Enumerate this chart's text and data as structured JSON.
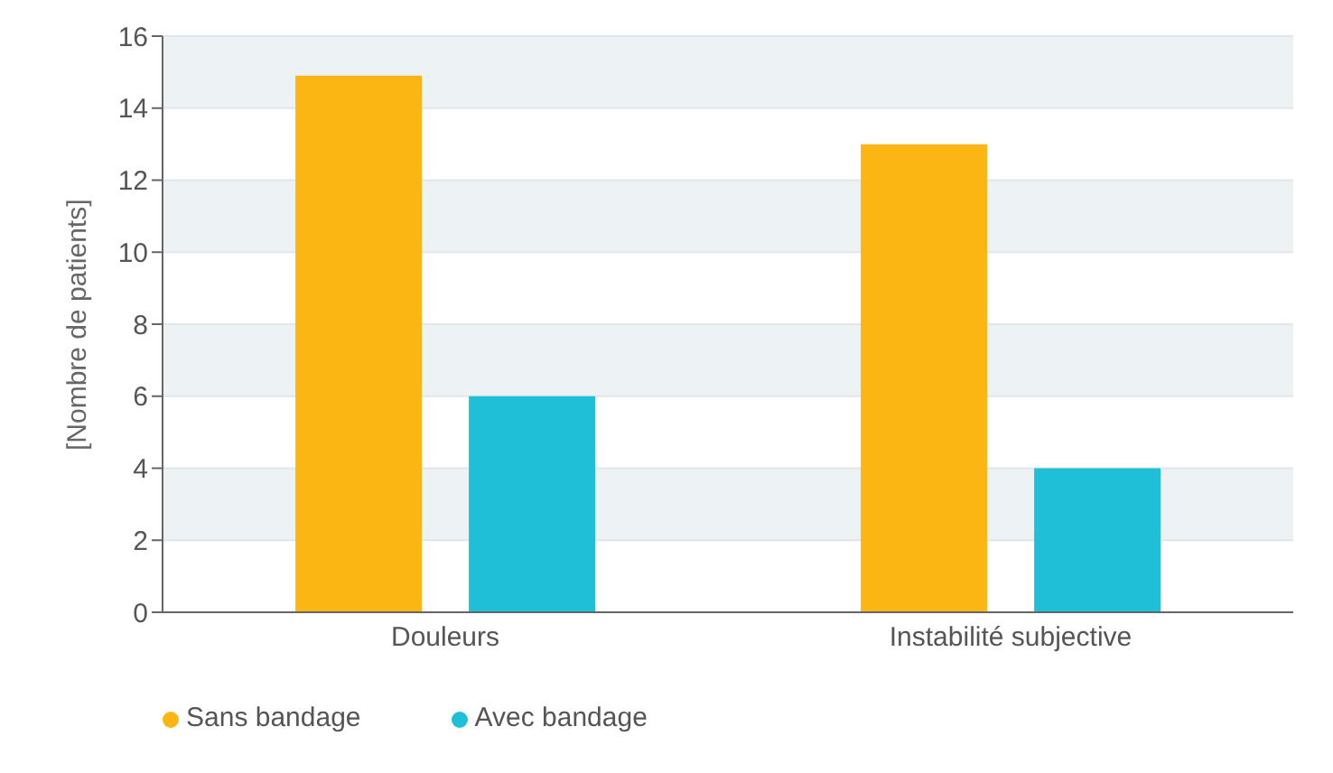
{
  "chart_data": {
    "type": "bar",
    "ylabel": "[Nombre de patients]",
    "categories": [
      "Douleurs",
      "Instabilité subjective"
    ],
    "series": [
      {
        "name": "Sans bandage",
        "color": "#fbb614",
        "values": [
          14.9,
          13
        ]
      },
      {
        "name": "Avec bandage",
        "color": "#1fbfd8",
        "values": [
          6,
          4
        ]
      }
    ],
    "ylim": [
      0,
      16
    ],
    "yticks": [
      0,
      2,
      4,
      6,
      8,
      10,
      12,
      14,
      16
    ],
    "grid": "y",
    "legend": "bottom left"
  }
}
